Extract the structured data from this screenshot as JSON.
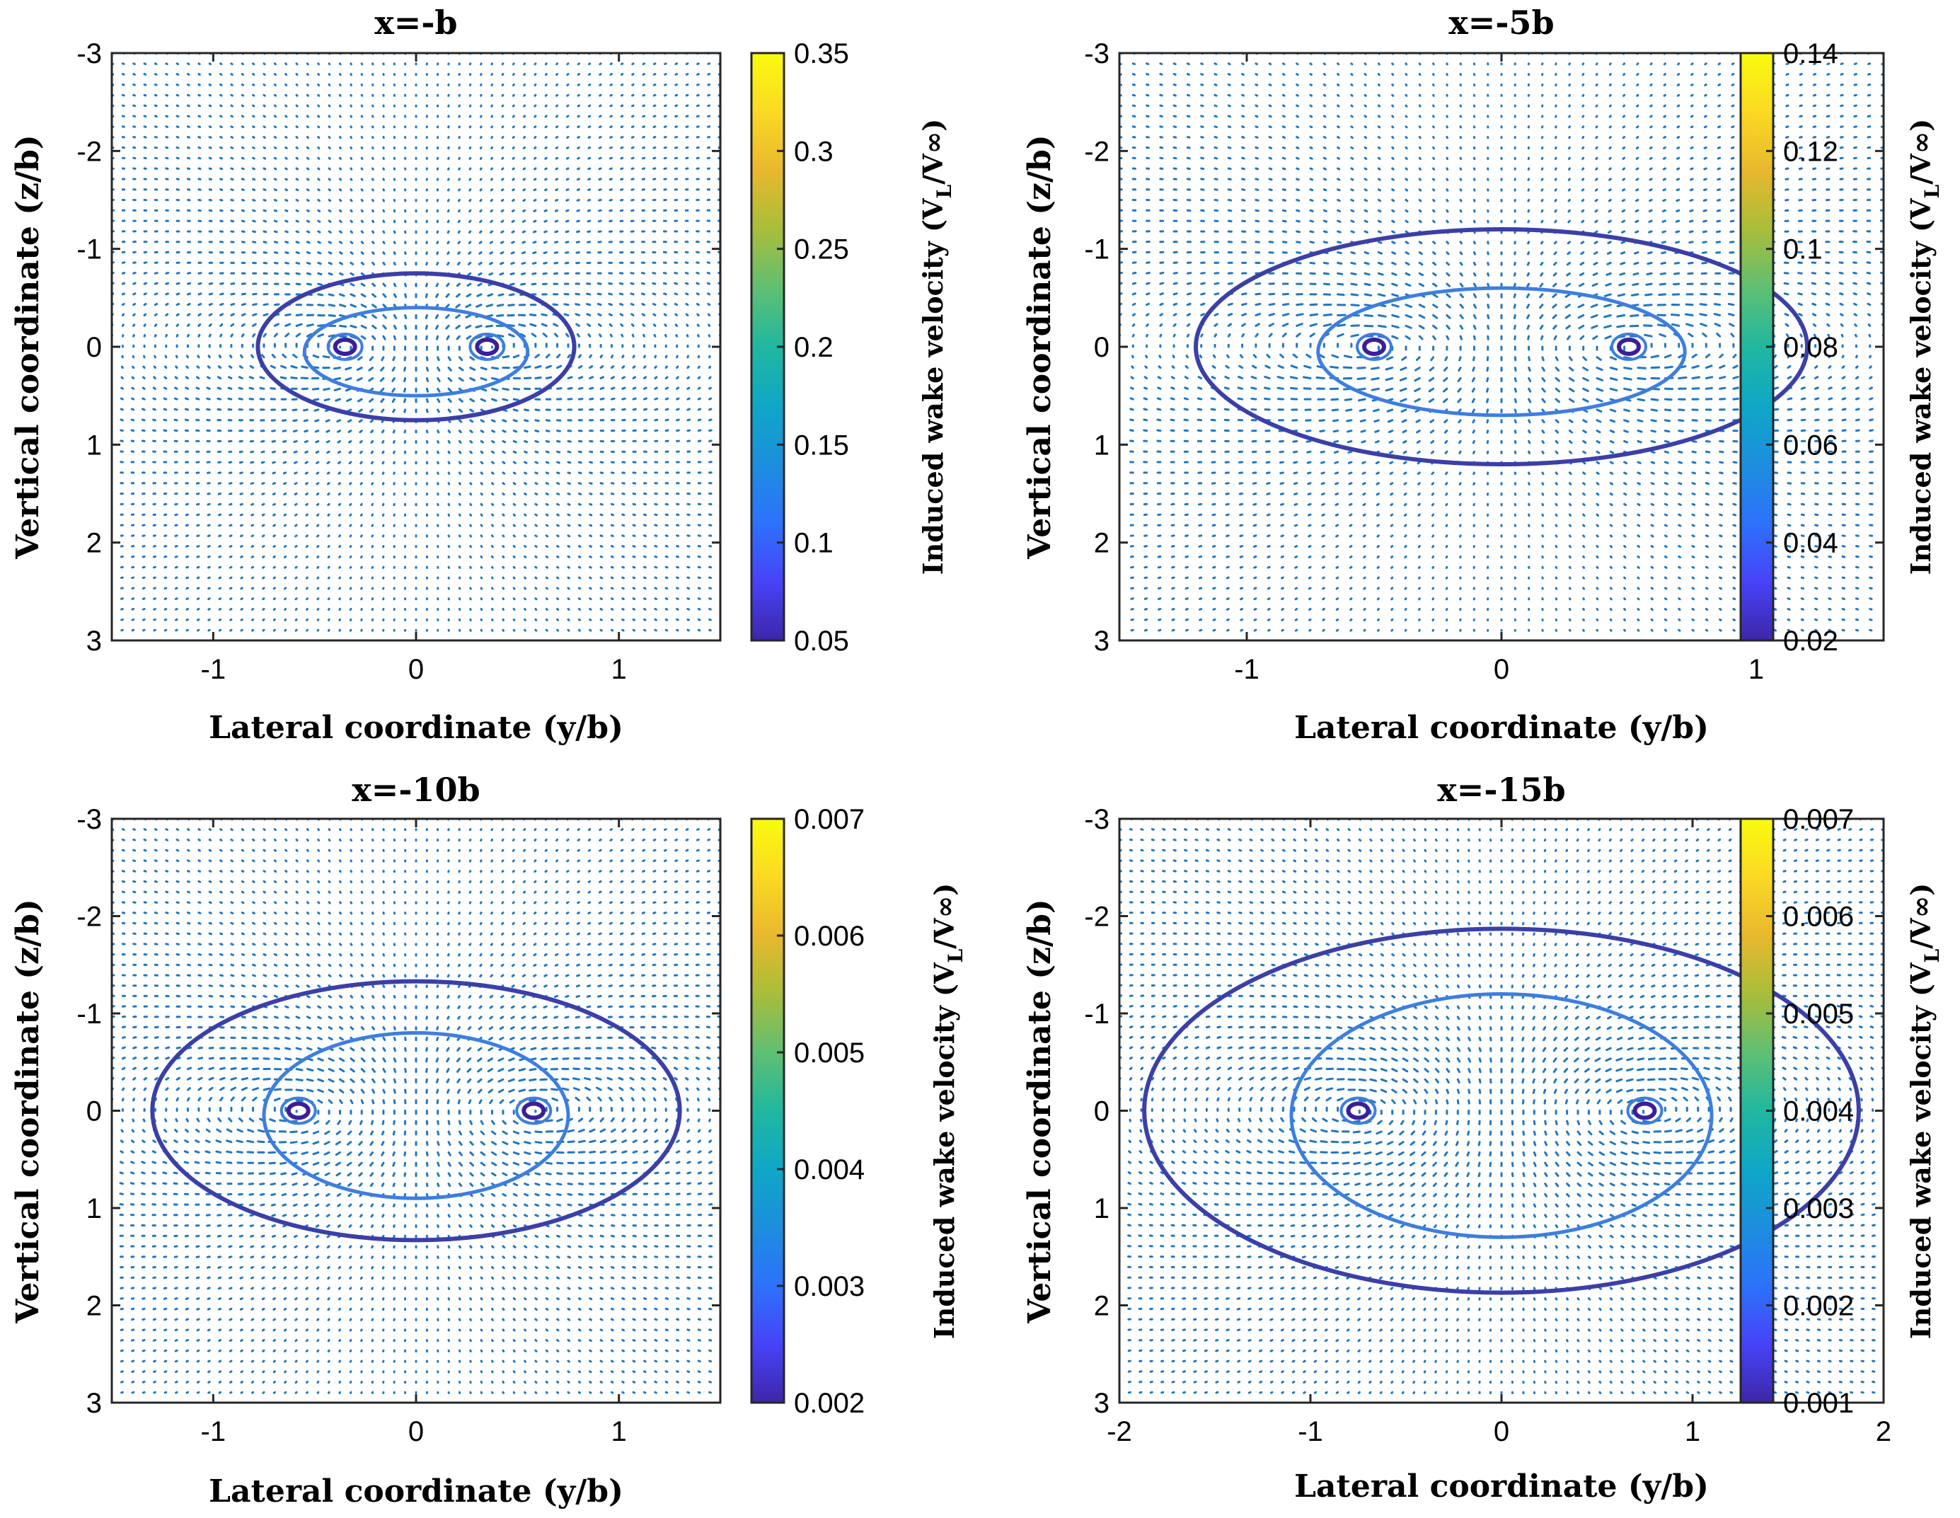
{
  "chart_data": [
    {
      "type": "quiver",
      "title": "x=-b",
      "xlabel": "Lateral coordinate (y/b)",
      "ylabel": "Vertical coordinate (z/b)",
      "xlim": [
        -1.5,
        1.5
      ],
      "ylim": [
        -3,
        3
      ],
      "y_reversed": true,
      "xticks": [
        -1,
        0,
        1
      ],
      "xtick_labels": [
        "-1",
        "0",
        "1"
      ],
      "yticks": [
        -3,
        -2,
        -1,
        0,
        1,
        2,
        3
      ],
      "ytick_labels": [
        "-3",
        "-2",
        "-1",
        "0",
        "1",
        "2",
        "3"
      ],
      "vortex_y": 0.35,
      "outer_ellipse": {
        "semi_y": 0.78,
        "semi_z": 0.75
      },
      "inner_contour": {
        "semi_y": 0.55,
        "semi_z": 0.45
      },
      "colorbar": {
        "label": "Induced wake velocity (V",
        "label_sub": "L",
        "label_tail": "/V∞)",
        "min": 0.05,
        "max": 0.35,
        "ticks": [
          0.05,
          0.1,
          0.15,
          0.2,
          0.25,
          0.3,
          0.35
        ],
        "tick_labels": [
          "0.05",
          "0.1",
          "0.15",
          "0.2",
          "0.25",
          "0.3",
          "0.35"
        ]
      }
    },
    {
      "type": "quiver",
      "title": "x=-5b",
      "xlabel": "Lateral  coordinate (y/b)",
      "ylabel": "Vertical coordinate (z/b)",
      "xlim": [
        -1.5,
        1.5
      ],
      "ylim": [
        -3,
        3
      ],
      "y_reversed": true,
      "xticks": [
        -1,
        0,
        1
      ],
      "xtick_labels": [
        "-1",
        "0",
        "1"
      ],
      "yticks": [
        -3,
        -2,
        -1,
        0,
        1,
        2,
        3
      ],
      "ytick_labels": [
        "-3",
        "-2",
        "-1",
        "0",
        "1",
        "2",
        "3"
      ],
      "vortex_y": 0.5,
      "outer_ellipse": {
        "semi_y": 1.2,
        "semi_z": 1.2
      },
      "inner_contour": {
        "semi_y": 0.72,
        "semi_z": 0.65
      },
      "colorbar": {
        "label": "Induced wake velocity (V",
        "label_sub": "L",
        "label_tail": "/V∞)",
        "min": 0.02,
        "max": 0.14,
        "ticks": [
          0.02,
          0.04,
          0.06,
          0.08,
          0.1,
          0.12,
          0.14
        ],
        "tick_labels": [
          "0.02",
          "0.04",
          "0.06",
          "0.08",
          "0.1",
          "0.12",
          "0.14"
        ]
      }
    },
    {
      "type": "quiver",
      "title": "x=-10b",
      "xlabel": "Lateral coordinate (y/b)",
      "ylabel": "Vertical coordinate (z/b)",
      "xlim": [
        -1.5,
        1.5
      ],
      "ylim": [
        -3,
        3
      ],
      "y_reversed": true,
      "xticks": [
        -1,
        0,
        1
      ],
      "xtick_labels": [
        "-1",
        "0",
        "1"
      ],
      "yticks": [
        -3,
        -2,
        -1,
        0,
        1,
        2,
        3
      ],
      "ytick_labels": [
        "-3",
        "-2",
        "-1",
        "0",
        "1",
        "2",
        "3"
      ],
      "vortex_y": 0.58,
      "outer_ellipse": {
        "semi_y": 1.3,
        "semi_z": 1.33
      },
      "inner_contour": {
        "semi_y": 0.75,
        "semi_z": 0.85
      },
      "colorbar": {
        "label": "Induced wake velocity (V",
        "label_sub": "L",
        "label_tail": "/V∞)",
        "min": 0.002,
        "max": 0.007,
        "ticks": [
          0.002,
          0.003,
          0.004,
          0.005,
          0.006,
          0.007
        ],
        "tick_labels": [
          "0.002",
          "0.003",
          "0.004",
          "0.005",
          "0.006",
          "0.007"
        ]
      }
    },
    {
      "type": "quiver",
      "title": "x=-15b",
      "xlabel": "Lateral coordinate (y/b)",
      "ylabel": "Vertical coordinate (z/b)",
      "xlim": [
        -2,
        2
      ],
      "ylim": [
        -3,
        3
      ],
      "y_reversed": true,
      "xticks": [
        -2,
        -1,
        0,
        1,
        2
      ],
      "xtick_labels": [
        "-2",
        "-1",
        "0",
        "1",
        "2"
      ],
      "yticks": [
        -3,
        -2,
        -1,
        0,
        1,
        2,
        3
      ],
      "ytick_labels": [
        "-3",
        "-2",
        "-1",
        "0",
        "1",
        "2",
        "3"
      ],
      "vortex_y": 0.75,
      "outer_ellipse": {
        "semi_y": 1.87,
        "semi_z": 1.87
      },
      "inner_contour": {
        "semi_y": 1.1,
        "semi_z": 1.25
      },
      "colorbar": {
        "label": "Induced wake velocity (V",
        "label_sub": "L",
        "label_tail": "/V∞)",
        "min": 0.001,
        "max": 0.007,
        "ticks": [
          0.001,
          0.002,
          0.003,
          0.004,
          0.005,
          0.006,
          0.007
        ],
        "tick_labels": [
          "0.001",
          "0.002",
          "0.003",
          "0.004",
          "0.005",
          "0.006",
          "0.007"
        ]
      }
    }
  ],
  "colors": {
    "vector_field": "#1f77c4",
    "outer_contour": "#3b3fa8",
    "inner_contour": "#3d7ee0",
    "vortex_core": "#3a1f9a",
    "colormap_parula": [
      "#3e26a8",
      "#4743f8",
      "#2d72fb",
      "#1d8ede",
      "#0fa7c6",
      "#21b7a0",
      "#5fbf73",
      "#a9bd3a",
      "#e8b82e",
      "#fbd924",
      "#f9fb0e"
    ]
  }
}
